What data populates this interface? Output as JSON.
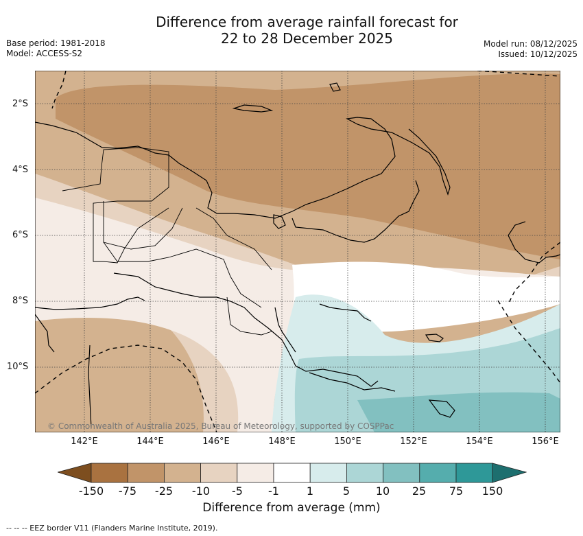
{
  "title_line1": "Difference from average rainfall forecast for",
  "title_line2": "22 to 28 December 2025",
  "meta_left": {
    "base_period": "Base period: 1981-2018",
    "model": "Model: ACCESS-S2"
  },
  "meta_right": {
    "model_run": "Model run: 08/12/2025",
    "issued": "Issued: 10/12/2025"
  },
  "x_ticks": [
    "142°E",
    "144°E",
    "146°E",
    "148°E",
    "150°E",
    "152°E",
    "154°E",
    "156°E"
  ],
  "y_ticks": [
    "2°S",
    "4°S",
    "6°S",
    "8°S",
    "10°S"
  ],
  "copyright": "© Commonwealth of Australia 2025, Bureau of Meteorology, supported by COSPPac",
  "colorbar": {
    "ticks": [
      "-150",
      "-75",
      "-25",
      "-10",
      "-5",
      "-1",
      "1",
      "5",
      "10",
      "25",
      "75",
      "150"
    ],
    "colors": [
      "#7d4e1f",
      "#a97240",
      "#c19469",
      "#d3b28f",
      "#e7d3c1",
      "#f5ece6",
      "#ffffff",
      "#d7ecec",
      "#acd6d6",
      "#82c0c0",
      "#55adad",
      "#2e9898",
      "#1d6f6f"
    ],
    "label": "Difference from average (mm)"
  },
  "footnote": "--  --  -- EEZ border V11 (Flanders Marine Institute, 2019)."
}
